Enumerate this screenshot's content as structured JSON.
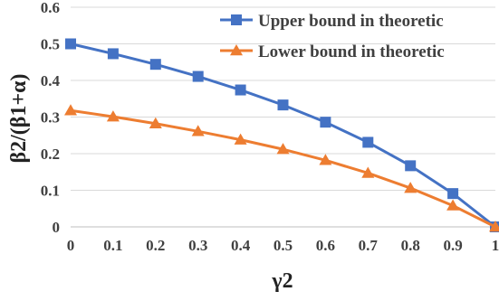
{
  "chart_data": {
    "type": "line",
    "title": "",
    "xlabel": "γ2",
    "ylabel": "β2/(β1+α)",
    "x": [
      0,
      0.1,
      0.2,
      0.3,
      0.4,
      0.5,
      0.6,
      0.7,
      0.8,
      0.9,
      1
    ],
    "x_tick_labels": [
      "0",
      "0.1",
      "0.2",
      "0.3",
      "0.4",
      "0.5",
      "0.6",
      "0.7",
      "0.8",
      "0.9",
      "1"
    ],
    "xlim": [
      0,
      1
    ],
    "ylim": [
      0,
      0.6
    ],
    "y_ticks": [
      0,
      0.1,
      0.2,
      0.3,
      0.4,
      0.5,
      0.6
    ],
    "y_tick_labels": [
      "0",
      "0.1",
      "0.2",
      "0.3",
      "0.4",
      "0.5",
      "0.6"
    ],
    "grid": "horizontal",
    "legend_position": "top-right",
    "series": [
      {
        "name": "Upper bound in theoretic",
        "color": "#4472C4",
        "marker": "square",
        "values": [
          0.5,
          0.473,
          0.444,
          0.411,
          0.374,
          0.333,
          0.286,
          0.231,
          0.167,
          0.091,
          0
        ]
      },
      {
        "name": "Lower bound in theoretic",
        "color": "#ED7D31",
        "marker": "triangle",
        "values": [
          0.318,
          0.301,
          0.282,
          0.261,
          0.238,
          0.212,
          0.182,
          0.147,
          0.106,
          0.058,
          0
        ]
      }
    ]
  }
}
